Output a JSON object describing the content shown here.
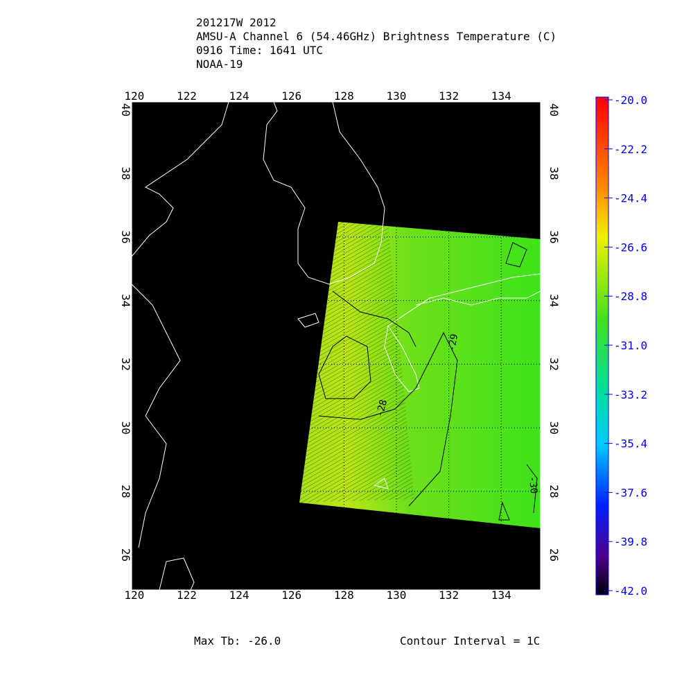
{
  "header": {
    "lines": [
      "201217W 2012",
      "AMSU-A Channel 6 (54.46GHz) Brightness Temperature (C)",
      "0916 Time: 1641 UTC",
      "NOAA-19"
    ]
  },
  "map": {
    "lon_range": [
      119.9,
      135.5
    ],
    "lat_range": [
      24.9,
      40.25
    ],
    "lon_ticks": [
      120,
      122,
      124,
      126,
      128,
      130,
      132,
      134
    ],
    "lat_ticks": [
      26,
      28,
      30,
      32,
      34,
      36,
      38,
      40
    ],
    "contour_labels": [
      "-28",
      "-29",
      "-30"
    ]
  },
  "colorbar": {
    "range": [
      -42,
      -20
    ],
    "ticks": [
      {
        "value": -20,
        "label": "-20.0"
      },
      {
        "value": -22.2,
        "label": "-22.2"
      },
      {
        "value": -24.4,
        "label": "-24.4"
      },
      {
        "value": -26.6,
        "label": "-26.6"
      },
      {
        "value": -28.8,
        "label": "-28.8"
      },
      {
        "value": -31,
        "label": "-31.0"
      },
      {
        "value": -33.2,
        "label": "-33.2"
      },
      {
        "value": -35.4,
        "label": "-35.4"
      },
      {
        "value": -37.6,
        "label": "-37.6"
      },
      {
        "value": -39.8,
        "label": "-39.8"
      },
      {
        "value": -42,
        "label": "-42.0"
      }
    ]
  },
  "footer": {
    "max_tb": "Max Tb: -26.0",
    "contour_interval": "Contour Interval = 1C"
  }
}
